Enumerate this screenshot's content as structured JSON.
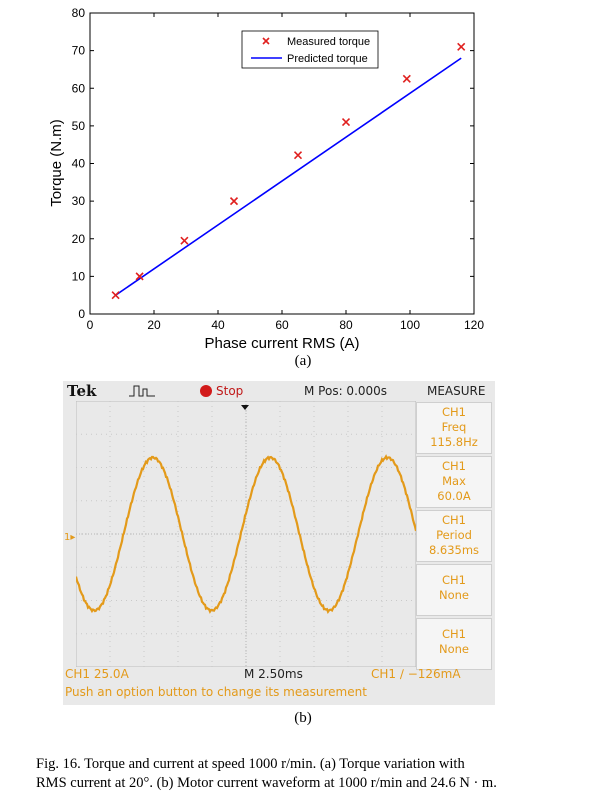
{
  "chart_data": [
    {
      "type": "scatter",
      "title": "",
      "xlabel": "Phase current RMS (A)",
      "ylabel": "Torque (N.m)",
      "xlim": [
        0,
        120
      ],
      "ylim": [
        0,
        80
      ],
      "xticks": [
        "0",
        "20",
        "40",
        "60",
        "80",
        "100",
        "120"
      ],
      "yticks": [
        "0",
        "10",
        "20",
        "30",
        "40",
        "50",
        "60",
        "70",
        "80"
      ],
      "grid": false,
      "legend_position": "top-right",
      "series": [
        {
          "name": "Measured torque",
          "kind": "scatter",
          "marker": "x",
          "color": "#e0201f",
          "x": [
            8,
            15.5,
            29.5,
            45,
            65,
            80,
            99,
            116
          ],
          "y": [
            5,
            10,
            19.5,
            30,
            42.2,
            51,
            62.5,
            71
          ]
        },
        {
          "name": "Predicted torque",
          "kind": "line",
          "color": "#0000ff",
          "x": [
            8,
            116
          ],
          "y": [
            5,
            68
          ]
        }
      ]
    },
    {
      "type": "line",
      "title": "",
      "cycles_visible": 2.9,
      "amplitude_divisions": 2.3,
      "waveform_color": "#e39a1a"
    }
  ],
  "labels": {
    "a": "(a)",
    "b": "(b)"
  },
  "scope": {
    "brand": "Tek",
    "trigger_icon": "trigger-waveform-icon",
    "run_state": "Stop",
    "position": "M Pos: 0.000s",
    "measure_title": "MEASURE",
    "measurements": [
      {
        "channel": "CH1",
        "name": "Freq",
        "value": "115.8Hz"
      },
      {
        "channel": "CH1",
        "name": "Max",
        "value": "60.0A"
      },
      {
        "channel": "CH1",
        "name": "Period",
        "value": "8.635ms"
      },
      {
        "channel": "CH1",
        "name": "None",
        "value": ""
      },
      {
        "channel": "CH1",
        "name": "None",
        "value": ""
      }
    ],
    "ch1_scale": "CH1  25.0A",
    "timebase": "M 2.50ms",
    "trigger_level": "CH1 ∕ −126mA",
    "hint": "Push an option button to change its measurement",
    "ch1_marker": "1▸"
  },
  "caption": {
    "line1": "Fig. 16.   Torque and current at speed 1000 r/min. (a) Torque variation with",
    "line2": "RMS current at 20°. (b) Motor current waveform at 1000 r/min and 24.6 N · m."
  }
}
